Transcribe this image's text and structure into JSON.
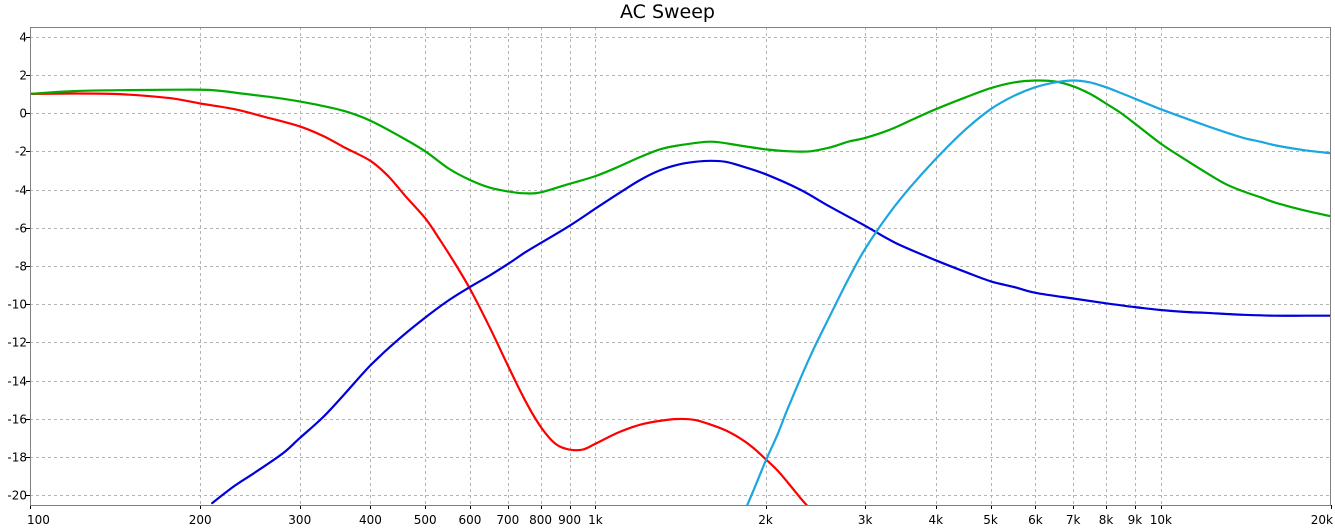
{
  "chart_data": {
    "type": "line",
    "title": "AC Sweep",
    "xlabel": "",
    "ylabel": "",
    "x_scale": "log",
    "xlim": [
      100,
      20000
    ],
    "ylim": [
      -20.5,
      4.5
    ],
    "grid": true,
    "legend": "none",
    "x_ticks": [
      {
        "value": 100,
        "label": "100"
      },
      {
        "value": 200,
        "label": "200"
      },
      {
        "value": 300,
        "label": "300"
      },
      {
        "value": 400,
        "label": "400"
      },
      {
        "value": 500,
        "label": "500"
      },
      {
        "value": 600,
        "label": "600"
      },
      {
        "value": 700,
        "label": "700"
      },
      {
        "value": 800,
        "label": "800"
      },
      {
        "value": 900,
        "label": "900"
      },
      {
        "value": 1000,
        "label": "1k"
      },
      {
        "value": 2000,
        "label": "2k"
      },
      {
        "value": 3000,
        "label": "3k"
      },
      {
        "value": 4000,
        "label": "4k"
      },
      {
        "value": 5000,
        "label": "5k"
      },
      {
        "value": 6000,
        "label": "6k"
      },
      {
        "value": 7000,
        "label": "7k"
      },
      {
        "value": 8000,
        "label": "8k"
      },
      {
        "value": 9000,
        "label": "9k"
      },
      {
        "value": 10000,
        "label": "10k"
      },
      {
        "value": 20000,
        "label": "20k"
      }
    ],
    "y_ticks": [
      {
        "value": 4,
        "label": "4"
      },
      {
        "value": 2,
        "label": "2"
      },
      {
        "value": 0,
        "label": "0"
      },
      {
        "value": -2,
        "label": "-2"
      },
      {
        "value": -4,
        "label": "-4"
      },
      {
        "value": -6,
        "label": "-6"
      },
      {
        "value": -8,
        "label": "-8"
      },
      {
        "value": -10,
        "label": "-10"
      },
      {
        "value": -12,
        "label": "-12"
      },
      {
        "value": -14,
        "label": "-14"
      },
      {
        "value": -16,
        "label": "-16"
      },
      {
        "value": -18,
        "label": "-18"
      },
      {
        "value": -20,
        "label": "-20"
      }
    ],
    "series": [
      {
        "color": "#ff0000",
        "points": [
          [
            100,
            1.0
          ],
          [
            120,
            1.02
          ],
          [
            140,
            1.0
          ],
          [
            160,
            0.9
          ],
          [
            180,
            0.75
          ],
          [
            200,
            0.5
          ],
          [
            230,
            0.2
          ],
          [
            260,
            -0.2
          ],
          [
            300,
            -0.7
          ],
          [
            330,
            -1.2
          ],
          [
            360,
            -1.8
          ],
          [
            400,
            -2.5
          ],
          [
            430,
            -3.3
          ],
          [
            460,
            -4.3
          ],
          [
            500,
            -5.5
          ],
          [
            530,
            -6.6
          ],
          [
            560,
            -7.7
          ],
          [
            600,
            -9.2
          ],
          [
            650,
            -11.2
          ],
          [
            700,
            -13.2
          ],
          [
            750,
            -15.0
          ],
          [
            800,
            -16.4
          ],
          [
            850,
            -17.3
          ],
          [
            900,
            -17.6
          ],
          [
            950,
            -17.6
          ],
          [
            1000,
            -17.3
          ],
          [
            1100,
            -16.7
          ],
          [
            1200,
            -16.3
          ],
          [
            1300,
            -16.1
          ],
          [
            1400,
            -16.0
          ],
          [
            1500,
            -16.05
          ],
          [
            1600,
            -16.3
          ],
          [
            1700,
            -16.6
          ],
          [
            1800,
            -17.0
          ],
          [
            1900,
            -17.5
          ],
          [
            2000,
            -18.1
          ],
          [
            2100,
            -18.7
          ],
          [
            2200,
            -19.4
          ],
          [
            2300,
            -20.1
          ],
          [
            2380,
            -20.6
          ]
        ]
      },
      {
        "color": "#00aa00",
        "points": [
          [
            100,
            1.0
          ],
          [
            120,
            1.15
          ],
          [
            150,
            1.2
          ],
          [
            180,
            1.22
          ],
          [
            210,
            1.2
          ],
          [
            240,
            1.0
          ],
          [
            280,
            0.75
          ],
          [
            320,
            0.45
          ],
          [
            360,
            0.1
          ],
          [
            400,
            -0.4
          ],
          [
            450,
            -1.2
          ],
          [
            500,
            -2.0
          ],
          [
            550,
            -2.9
          ],
          [
            600,
            -3.5
          ],
          [
            650,
            -3.9
          ],
          [
            700,
            -4.1
          ],
          [
            750,
            -4.2
          ],
          [
            800,
            -4.15
          ],
          [
            900,
            -3.7
          ],
          [
            1000,
            -3.3
          ],
          [
            1100,
            -2.8
          ],
          [
            1200,
            -2.3
          ],
          [
            1300,
            -1.9
          ],
          [
            1400,
            -1.7
          ],
          [
            1600,
            -1.5
          ],
          [
            1800,
            -1.7
          ],
          [
            2000,
            -1.9
          ],
          [
            2200,
            -2.0
          ],
          [
            2400,
            -2.0
          ],
          [
            2600,
            -1.8
          ],
          [
            2800,
            -1.5
          ],
          [
            3000,
            -1.3
          ],
          [
            3300,
            -0.9
          ],
          [
            3600,
            -0.4
          ],
          [
            4000,
            0.2
          ],
          [
            4500,
            0.8
          ],
          [
            5000,
            1.3
          ],
          [
            5500,
            1.6
          ],
          [
            6000,
            1.7
          ],
          [
            6500,
            1.65
          ],
          [
            7000,
            1.4
          ],
          [
            7500,
            1.0
          ],
          [
            8000,
            0.5
          ],
          [
            8500,
            0.0
          ],
          [
            9000,
            -0.55
          ],
          [
            10000,
            -1.6
          ],
          [
            11000,
            -2.4
          ],
          [
            12000,
            -3.1
          ],
          [
            13000,
            -3.7
          ],
          [
            14000,
            -4.1
          ],
          [
            15000,
            -4.4
          ],
          [
            16000,
            -4.7
          ],
          [
            18000,
            -5.1
          ],
          [
            20000,
            -5.4
          ]
        ]
      },
      {
        "color": "#0000dd",
        "points": [
          [
            210,
            -20.4
          ],
          [
            230,
            -19.5
          ],
          [
            250,
            -18.8
          ],
          [
            280,
            -17.8
          ],
          [
            300,
            -17.0
          ],
          [
            330,
            -15.9
          ],
          [
            360,
            -14.7
          ],
          [
            400,
            -13.2
          ],
          [
            450,
            -11.8
          ],
          [
            500,
            -10.7
          ],
          [
            550,
            -9.8
          ],
          [
            600,
            -9.1
          ],
          [
            650,
            -8.5
          ],
          [
            700,
            -7.9
          ],
          [
            750,
            -7.3
          ],
          [
            800,
            -6.8
          ],
          [
            900,
            -5.9
          ],
          [
            1000,
            -5.0
          ],
          [
            1100,
            -4.2
          ],
          [
            1200,
            -3.5
          ],
          [
            1300,
            -3.0
          ],
          [
            1400,
            -2.7
          ],
          [
            1500,
            -2.55
          ],
          [
            1600,
            -2.5
          ],
          [
            1700,
            -2.55
          ],
          [
            1800,
            -2.75
          ],
          [
            2000,
            -3.2
          ],
          [
            2300,
            -4.0
          ],
          [
            2600,
            -4.9
          ],
          [
            3000,
            -5.9
          ],
          [
            3400,
            -6.8
          ],
          [
            4000,
            -7.7
          ],
          [
            4500,
            -8.3
          ],
          [
            5000,
            -8.8
          ],
          [
            5500,
            -9.1
          ],
          [
            6000,
            -9.4
          ],
          [
            7000,
            -9.7
          ],
          [
            8000,
            -9.95
          ],
          [
            9000,
            -10.15
          ],
          [
            10000,
            -10.3
          ],
          [
            11000,
            -10.4
          ],
          [
            12000,
            -10.45
          ],
          [
            14000,
            -10.55
          ],
          [
            16000,
            -10.6
          ],
          [
            18000,
            -10.6
          ],
          [
            20000,
            -10.6
          ]
        ]
      },
      {
        "color": "#1aa6e0",
        "points": [
          [
            1850,
            -20.6
          ],
          [
            1900,
            -19.8
          ],
          [
            2000,
            -18.2
          ],
          [
            2100,
            -16.8
          ],
          [
            2200,
            -15.3
          ],
          [
            2400,
            -12.7
          ],
          [
            2600,
            -10.6
          ],
          [
            2800,
            -8.7
          ],
          [
            3000,
            -7.1
          ],
          [
            3300,
            -5.3
          ],
          [
            3600,
            -3.9
          ],
          [
            4000,
            -2.4
          ],
          [
            4500,
            -0.9
          ],
          [
            5000,
            0.2
          ],
          [
            5500,
            0.9
          ],
          [
            6000,
            1.35
          ],
          [
            6500,
            1.6
          ],
          [
            7000,
            1.7
          ],
          [
            7500,
            1.6
          ],
          [
            8000,
            1.35
          ],
          [
            8500,
            1.05
          ],
          [
            9000,
            0.75
          ],
          [
            10000,
            0.2
          ],
          [
            11000,
            -0.25
          ],
          [
            12000,
            -0.65
          ],
          [
            13000,
            -1.0
          ],
          [
            14000,
            -1.3
          ],
          [
            15000,
            -1.5
          ],
          [
            16000,
            -1.7
          ],
          [
            18000,
            -1.95
          ],
          [
            20000,
            -2.1
          ]
        ]
      }
    ]
  }
}
